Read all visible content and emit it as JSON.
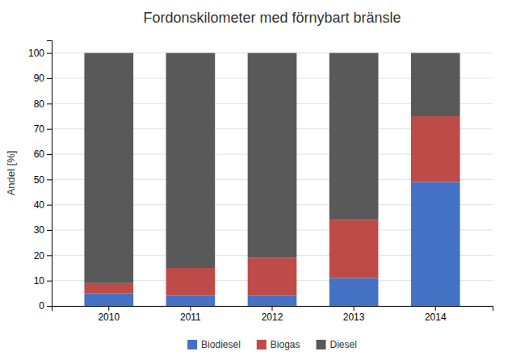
{
  "chart_data": {
    "type": "bar",
    "stacked": true,
    "title": "Fordonskilometer med förnybart bränsle",
    "ylabel": "Andel [%]",
    "categories": [
      "2010",
      "2011",
      "2012",
      "2013",
      "2014"
    ],
    "series": [
      {
        "name": "Biodiesel",
        "color": "#4472C4",
        "values": [
          5,
          4,
          4,
          11,
          49
        ]
      },
      {
        "name": "Biogas",
        "color": "#BE4B48",
        "values": [
          4,
          11,
          15,
          23,
          26
        ]
      },
      {
        "name": "Diesel",
        "color": "#595959",
        "values": [
          91,
          85,
          81,
          66,
          25
        ]
      }
    ],
    "ylim": [
      0,
      105
    ],
    "yticks": [
      0,
      10,
      20,
      30,
      40,
      50,
      60,
      70,
      80,
      90,
      100
    ],
    "grid": true,
    "legend": "bottom"
  }
}
